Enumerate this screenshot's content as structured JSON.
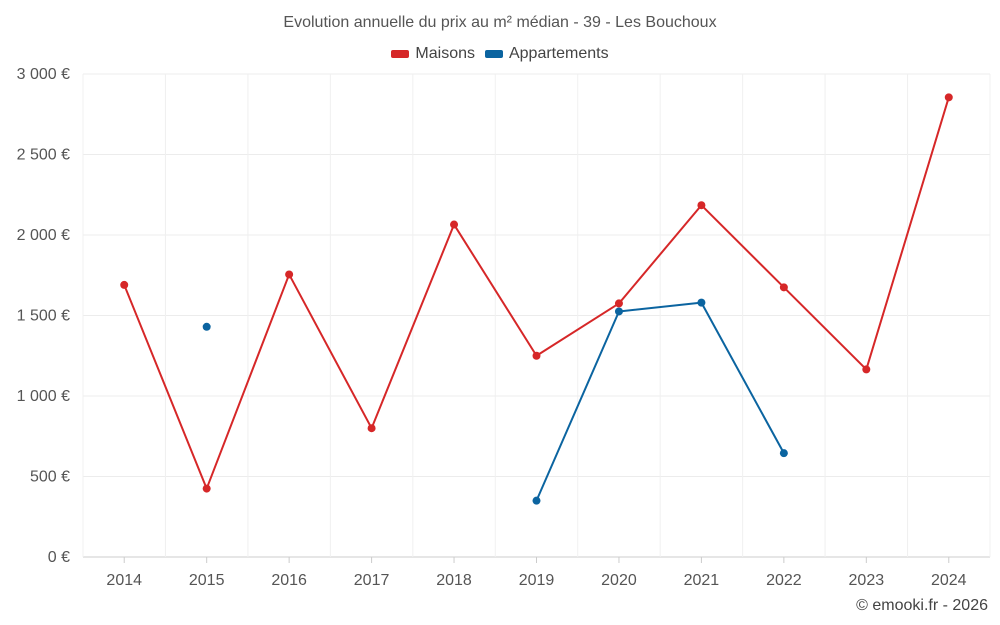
{
  "chart_data": {
    "type": "line",
    "title": "Evolution annuelle du prix au m² médian - 39 - Les Bouchoux",
    "xlabel": "",
    "ylabel": "",
    "categories": [
      "2014",
      "2015",
      "2016",
      "2017",
      "2018",
      "2019",
      "2020",
      "2021",
      "2022",
      "2023",
      "2024"
    ],
    "ylim": [
      0,
      3000
    ],
    "yticks": [
      0,
      500,
      1000,
      1500,
      2000,
      2500,
      3000
    ],
    "ytick_labels": [
      "0 €",
      "500 €",
      "1 000 €",
      "1 500 €",
      "2 000 €",
      "2 500 €",
      "3 000 €"
    ],
    "grid": true,
    "legend_position": "top-center",
    "series": [
      {
        "name": "Maisons",
        "color": "#d62728",
        "values": [
          1690,
          425,
          1755,
          800,
          2065,
          1250,
          1575,
          2185,
          1675,
          1165,
          2855
        ]
      },
      {
        "name": "Appartements",
        "color": "#0b64a0",
        "values": [
          null,
          1430,
          null,
          null,
          null,
          350,
          1525,
          1580,
          645,
          null,
          null
        ]
      }
    ]
  },
  "footer": {
    "credit": "© emooki.fr - 2026"
  }
}
